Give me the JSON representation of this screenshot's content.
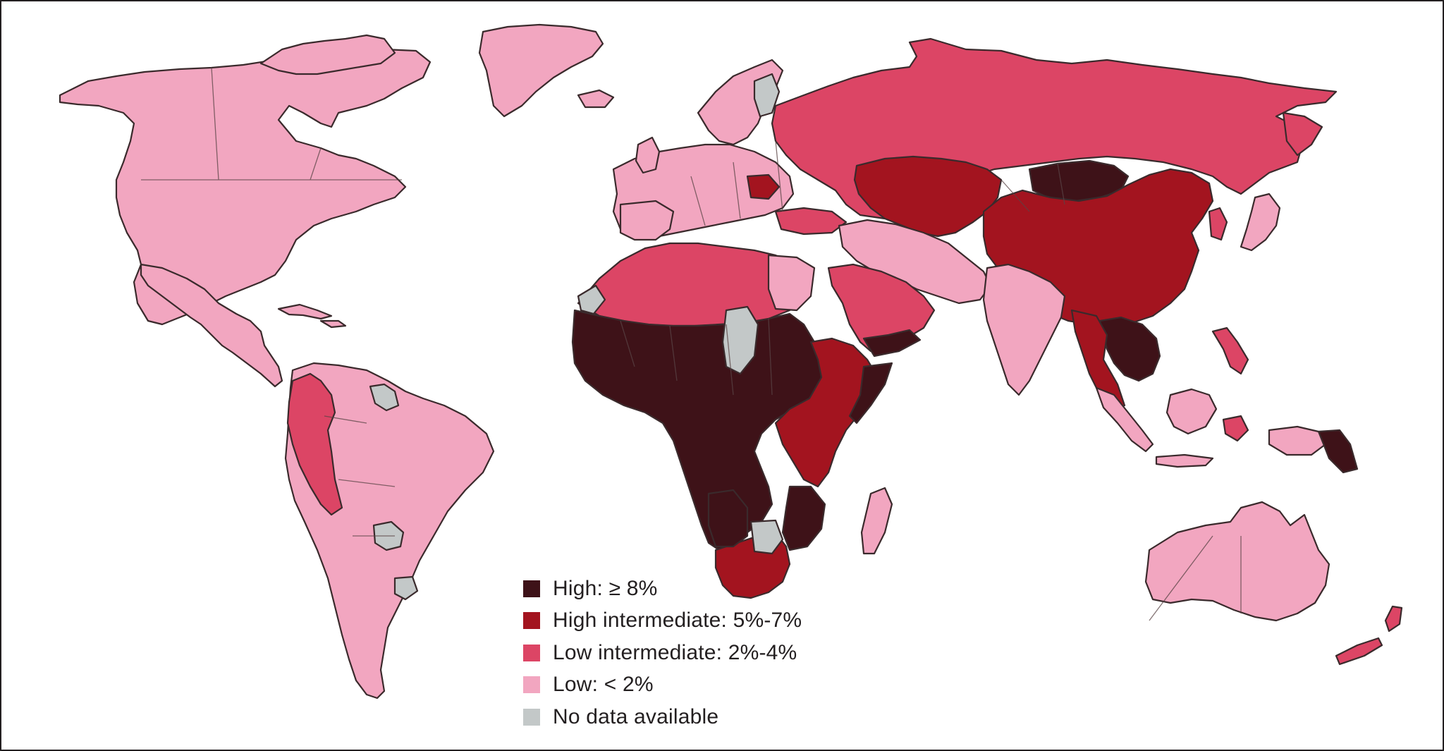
{
  "colors": {
    "high": "#3e1218",
    "high_intermediate": "#a3141f",
    "low_intermediate": "#dc4565",
    "low": "#f2a6c0",
    "no_data": "#c3c8c8"
  },
  "legend": {
    "items": [
      {
        "label": "High: ≥ 8%",
        "category": "high"
      },
      {
        "label": "High intermediate: 5%-7%",
        "category": "high_intermediate"
      },
      {
        "label": "Low intermediate: 2%-4%",
        "category": "low_intermediate"
      },
      {
        "label": "Low: < 2%",
        "category": "low"
      },
      {
        "label": "No data available",
        "category": "no_data"
      }
    ]
  },
  "regions": [
    {
      "name": "north-america",
      "category": "low"
    },
    {
      "name": "greenland",
      "category": "low"
    },
    {
      "name": "mexico-central-america",
      "category": "low"
    },
    {
      "name": "caribbean",
      "category": "low"
    },
    {
      "name": "south-america",
      "category": "low"
    },
    {
      "name": "colombia-ecuador-peru",
      "category": "low_intermediate"
    },
    {
      "name": "guianas",
      "category": "no_data"
    },
    {
      "name": "western-europe",
      "category": "low"
    },
    {
      "name": "scandinavia",
      "category": "low"
    },
    {
      "name": "russia",
      "category": "low_intermediate"
    },
    {
      "name": "kazakhstan-central-asia",
      "category": "high_intermediate"
    },
    {
      "name": "mongolia",
      "category": "high"
    },
    {
      "name": "china",
      "category": "high_intermediate"
    },
    {
      "name": "middle-east",
      "category": "low"
    },
    {
      "name": "arabian-peninsula",
      "category": "low_intermediate"
    },
    {
      "name": "india",
      "category": "low"
    },
    {
      "name": "southeast-asia",
      "category": "high"
    },
    {
      "name": "indonesia",
      "category": "low"
    },
    {
      "name": "papua-new-guinea",
      "category": "high"
    },
    {
      "name": "japan-korea",
      "category": "low"
    },
    {
      "name": "north-africa",
      "category": "low_intermediate"
    },
    {
      "name": "west-central-africa",
      "category": "high"
    },
    {
      "name": "east-africa",
      "category": "high_intermediate"
    },
    {
      "name": "southern-africa",
      "category": "high_intermediate"
    },
    {
      "name": "madagascar",
      "category": "low"
    },
    {
      "name": "australia",
      "category": "low"
    },
    {
      "name": "new-zealand",
      "category": "low_intermediate"
    }
  ]
}
